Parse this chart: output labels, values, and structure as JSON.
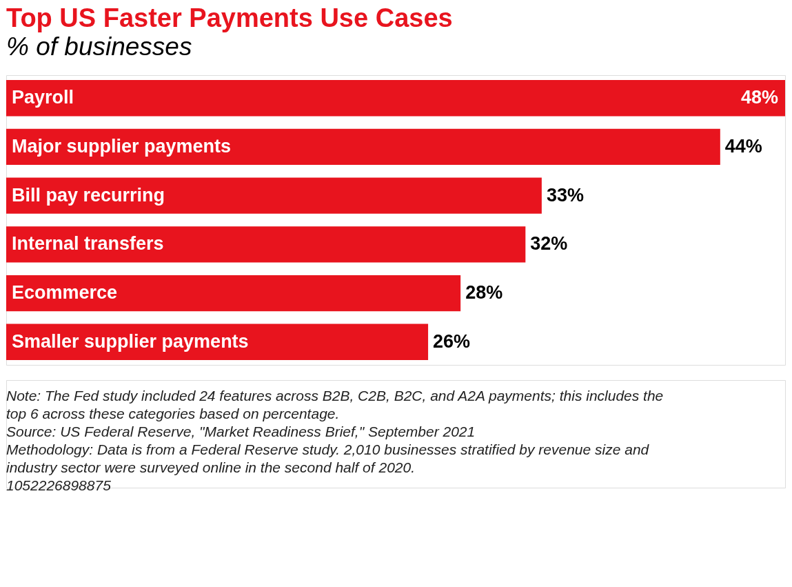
{
  "chart_data": {
    "type": "bar",
    "orientation": "horizontal",
    "title": "Top US Faster Payments Use Cases",
    "subtitle": "% of businesses",
    "categories": [
      "Payroll",
      "Major supplier payments",
      "Bill pay recurring",
      "Internal transfers",
      "Ecommerce",
      "Smaller supplier payments"
    ],
    "values": [
      48,
      44,
      33,
      32,
      28,
      26
    ],
    "value_labels": [
      "48%",
      "44%",
      "33%",
      "32%",
      "28%",
      "26%"
    ],
    "color": "#e8141e",
    "annotations": [
      "Note: The Fed study included 24 features across B2B, C2B, B2C, and A2A payments; this includes the top 6 across these categories based on percentage.",
      "Source: US Federal Reserve, \"Market Readiness Brief,\" September 2021",
      "Methodology: Data is from a Federal Reserve study. 2,010 businesses stratified by revenue size and industry sector were surveyed online in the second half of 2020.",
      "1052226898875"
    ]
  }
}
